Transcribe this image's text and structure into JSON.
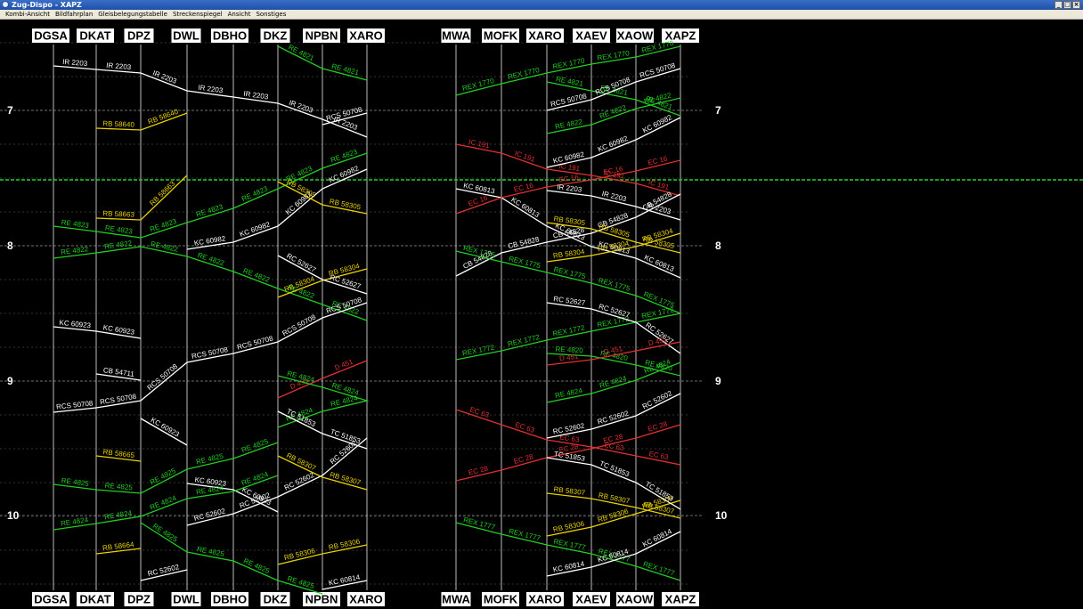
{
  "window": {
    "title": "Zug-Dispo - XAPZ",
    "minimize": "_",
    "maximize": "□",
    "close": "×"
  },
  "menu": [
    "Kombi-Ansicht",
    "Bildfahrplan",
    "Gleisbelegungstabelle",
    "Streckenspiegel",
    "Ansicht",
    "Sonstiges"
  ],
  "stations_left": [
    "DGSA",
    "DKAT",
    "DPZ",
    "DWL",
    "DBHO",
    "DKZ",
    "NPBN",
    "XARO"
  ],
  "stations_right": [
    "MWA",
    "MOFK",
    "XARO",
    "XAEV",
    "XAOW",
    "XAPZ"
  ],
  "hours": [
    "7",
    "8",
    "9",
    "10"
  ],
  "colors": {
    "green": "#22cc22",
    "yellow": "#e8d000",
    "white": "#ffffff",
    "red": "#e03030",
    "now_line": "#2ccb2c",
    "grid": "#666666"
  },
  "trains": [
    {
      "label": "IR 2203",
      "color": "white",
      "path": [
        [
          0,
          52
        ],
        [
          1,
          56
        ],
        [
          2,
          60
        ],
        [
          3,
          80
        ],
        [
          4,
          87
        ],
        [
          5,
          94
        ],
        [
          6,
          112
        ],
        [
          7,
          132
        ]
      ]
    },
    {
      "label": "RB 58640",
      "color": "yellow",
      "path": [
        [
          1,
          122
        ],
        [
          2,
          124
        ],
        [
          3,
          105
        ]
      ]
    },
    {
      "label": "RE 4821",
      "color": "green",
      "path": [
        [
          5,
          30
        ],
        [
          6,
          55
        ],
        [
          7,
          68
        ]
      ]
    },
    {
      "label": "RCS 50708",
      "color": "white",
      "path": [
        [
          6,
          118
        ],
        [
          7,
          105
        ]
      ]
    },
    {
      "label": "RB 58663",
      "color": "yellow",
      "path": [
        [
          1,
          223
        ],
        [
          2,
          225
        ],
        [
          3,
          175
        ]
      ]
    },
    {
      "label": "RE 4823",
      "color": "green",
      "path": [
        [
          0,
          232
        ],
        [
          1,
          238
        ],
        [
          2,
          245
        ],
        [
          3,
          228
        ],
        [
          4,
          212
        ],
        [
          5,
          190
        ],
        [
          6,
          167
        ],
        [
          7,
          150
        ]
      ]
    },
    {
      "label": "RE 4822",
      "color": "green",
      "path": [
        [
          0,
          268
        ],
        [
          1,
          262
        ],
        [
          2,
          255
        ],
        [
          3,
          266
        ],
        [
          4,
          283
        ],
        [
          5,
          302
        ],
        [
          6,
          320
        ],
        [
          7,
          338
        ]
      ]
    },
    {
      "label": "KC 60982",
      "color": "white",
      "path": [
        [
          3,
          258
        ],
        [
          4,
          250
        ],
        [
          5,
          232
        ],
        [
          6,
          190
        ],
        [
          7,
          168
        ]
      ]
    },
    {
      "label": "RB 58305",
      "color": "yellow",
      "path": [
        [
          5,
          182
        ],
        [
          6,
          208
        ],
        [
          7,
          218
        ]
      ]
    },
    {
      "label": "RB 58304",
      "color": "yellow",
      "path": [
        [
          5,
          312
        ],
        [
          6,
          293
        ],
        [
          7,
          280
        ]
      ]
    },
    {
      "label": "RC 52627",
      "color": "white",
      "path": [
        [
          5,
          265
        ],
        [
          6,
          292
        ],
        [
          7,
          308
        ]
      ]
    },
    {
      "label": "RCS 50708",
      "color": "white",
      "path": [
        [
          0,
          441
        ],
        [
          1,
          436
        ],
        [
          2,
          428
        ],
        [
          3,
          385
        ],
        [
          4,
          375
        ],
        [
          5,
          362
        ],
        [
          6,
          335
        ],
        [
          7,
          318
        ]
      ]
    },
    {
      "label": "KC 60923",
      "color": "white",
      "path": [
        [
          0,
          345
        ],
        [
          1,
          350
        ],
        [
          2,
          358
        ]
      ]
    },
    {
      "label": "CB 54711",
      "color": "white",
      "path": [
        [
          1,
          398
        ],
        [
          2,
          405
        ]
      ]
    },
    {
      "label": "D 451",
      "color": "red",
      "path": [
        [
          5,
          425
        ],
        [
          6,
          403
        ],
        [
          7,
          383
        ]
      ]
    },
    {
      "label": "RE 4824",
      "color": "green",
      "path": [
        [
          5,
          458
        ],
        [
          6,
          440
        ],
        [
          7,
          428
        ],
        [
          6,
          413
        ],
        [
          5,
          400
        ]
      ]
    },
    {
      "label": "TC 51853",
      "color": "white",
      "path": [
        [
          5,
          440
        ],
        [
          6,
          465
        ],
        [
          7,
          482
        ]
      ]
    },
    {
      "label": "RB 58665",
      "color": "yellow",
      "path": [
        [
          1,
          490
        ],
        [
          2,
          496
        ]
      ]
    },
    {
      "label": "RE 4825",
      "color": "green",
      "path": [
        [
          0,
          522
        ],
        [
          1,
          528
        ],
        [
          2,
          532
        ],
        [
          3,
          505
        ],
        [
          4,
          493
        ],
        [
          5,
          475
        ]
      ]
    },
    {
      "label": "KC 60923",
      "color": "white",
      "path": [
        [
          2,
          448
        ],
        [
          3,
          478
        ]
      ]
    },
    {
      "label": "KC 60923",
      "color": "white",
      "path": [
        [
          3,
          521
        ],
        [
          4,
          528
        ],
        [
          5,
          553
        ]
      ]
    },
    {
      "label": "RC 52602",
      "color": "white",
      "path": [
        [
          3,
          568
        ],
        [
          4,
          555
        ],
        [
          5,
          536
        ],
        [
          6,
          512
        ],
        [
          7,
          470
        ]
      ]
    },
    {
      "label": "RB 58307",
      "color": "yellow",
      "path": [
        [
          5,
          490
        ],
        [
          6,
          514
        ],
        [
          7,
          528
        ]
      ]
    },
    {
      "label": "RE 4824",
      "color": "green",
      "path": [
        [
          0,
          573
        ],
        [
          1,
          566
        ],
        [
          2,
          558
        ],
        [
          3,
          538
        ],
        [
          4,
          530
        ],
        [
          5,
          512
        ]
      ]
    },
    {
      "label": "RB 58664",
      "color": "yellow",
      "path": [
        [
          1,
          600
        ],
        [
          2,
          594
        ]
      ]
    },
    {
      "label": "RE 4825",
      "color": "green",
      "path": [
        [
          2,
          565
        ],
        [
          3,
          598
        ],
        [
          4,
          608
        ],
        [
          5,
          630
        ],
        [
          6,
          645
        ]
      ]
    },
    {
      "label": "RB 58306",
      "color": "yellow",
      "path": [
        [
          5,
          612
        ],
        [
          6,
          600
        ],
        [
          7,
          590
        ]
      ]
    },
    {
      "label": "KC 60814",
      "color": "white",
      "path": [
        [
          6,
          640
        ],
        [
          7,
          630
        ]
      ]
    },
    {
      "label": "RC 52602",
      "color": "white",
      "path": [
        [
          2,
          630
        ],
        [
          3,
          618
        ]
      ]
    },
    {
      "label": "REX 1770",
      "color": "green",
      "path": [
        [
          8,
          85
        ],
        [
          9,
          72
        ],
        [
          10,
          60
        ],
        [
          11,
          50
        ],
        [
          12,
          42
        ],
        [
          13,
          30
        ]
      ]
    },
    {
      "label": "IC 191",
      "color": "red",
      "path": [
        [
          8,
          140
        ],
        [
          9,
          150
        ],
        [
          10,
          168
        ],
        [
          11,
          175
        ],
        [
          12,
          184
        ],
        [
          13,
          198
        ]
      ]
    },
    {
      "label": "KC 60813",
      "color": "white",
      "path": [
        [
          8,
          190
        ],
        [
          9,
          200
        ],
        [
          10,
          232
        ],
        [
          11,
          255
        ],
        [
          12,
          268
        ],
        [
          13,
          290
        ]
      ]
    },
    {
      "label": "EC 16",
      "color": "red",
      "path": [
        [
          8,
          218
        ],
        [
          9,
          200
        ],
        [
          10,
          188
        ],
        [
          11,
          180
        ],
        [
          12,
          170
        ],
        [
          13,
          158
        ]
      ]
    },
    {
      "label": "CB 54828",
      "color": "white",
      "path": [
        [
          8,
          288
        ],
        [
          9,
          262
        ],
        [
          10,
          250
        ],
        [
          11,
          240
        ],
        [
          12,
          222
        ],
        [
          13,
          196
        ]
      ]
    },
    {
      "label": "REX 1775",
      "color": "green",
      "path": [
        [
          8,
          260
        ],
        [
          9,
          272
        ],
        [
          10,
          284
        ],
        [
          11,
          296
        ],
        [
          12,
          310
        ],
        [
          13,
          330
        ]
      ]
    },
    {
      "label": "REX 1772",
      "color": "green",
      "path": [
        [
          8,
          382
        ],
        [
          9,
          372
        ],
        [
          10,
          360
        ],
        [
          11,
          350
        ],
        [
          12,
          340
        ],
        [
          13,
          330
        ]
      ]
    },
    {
      "label": "EC 63",
      "color": "red",
      "path": [
        [
          8,
          438
        ],
        [
          9,
          455
        ],
        [
          10,
          472
        ],
        [
          11,
          480
        ],
        [
          12,
          490
        ],
        [
          13,
          500
        ]
      ]
    },
    {
      "label": "EC 28",
      "color": "red",
      "path": [
        [
          8,
          518
        ],
        [
          9,
          506
        ],
        [
          10,
          492
        ],
        [
          11,
          482
        ],
        [
          12,
          470
        ],
        [
          13,
          455
        ]
      ]
    },
    {
      "label": "REX 1777",
      "color": "green",
      "path": [
        [
          8,
          565
        ],
        [
          9,
          578
        ],
        [
          10,
          590
        ],
        [
          11,
          600
        ],
        [
          12,
          614
        ],
        [
          13,
          630
        ]
      ]
    },
    {
      "label": "RC 52627",
      "color": "white",
      "path": [
        [
          10,
          318
        ],
        [
          11,
          325
        ],
        [
          12,
          340
        ],
        [
          13,
          375
        ]
      ]
    },
    {
      "label": "RC 52602",
      "color": "white",
      "path": [
        [
          10,
          470
        ],
        [
          11,
          460
        ],
        [
          12,
          445
        ],
        [
          13,
          420
        ]
      ]
    },
    {
      "label": "RB 58305",
      "color": "yellow",
      "path": [
        [
          10,
          228
        ],
        [
          11,
          235
        ],
        [
          12,
          250
        ],
        [
          13,
          262
        ]
      ]
    },
    {
      "label": "RB 58304",
      "color": "yellow",
      "path": [
        [
          10,
          272
        ],
        [
          11,
          265
        ],
        [
          12,
          255
        ],
        [
          13,
          240
        ]
      ]
    },
    {
      "label": "RE 4822",
      "color": "green",
      "path": [
        [
          10,
          128
        ],
        [
          11,
          118
        ],
        [
          12,
          100
        ],
        [
          13,
          88
        ]
      ]
    },
    {
      "label": "RE 4821",
      "color": "green",
      "path": [
        [
          10,
          70
        ],
        [
          11,
          80
        ],
        [
          12,
          90
        ],
        [
          13,
          108
        ]
      ]
    },
    {
      "label": "RCS 50708",
      "color": "white",
      "path": [
        [
          10,
          102
        ],
        [
          11,
          90
        ],
        [
          12,
          70
        ],
        [
          13,
          55
        ]
      ]
    },
    {
      "label": "KC 60982",
      "color": "white",
      "path": [
        [
          10,
          166
        ],
        [
          11,
          155
        ],
        [
          12,
          135
        ],
        [
          13,
          110
        ]
      ]
    },
    {
      "label": "IR 2203",
      "color": "white",
      "path": [
        [
          10,
          192
        ],
        [
          11,
          198
        ],
        [
          12,
          210
        ],
        [
          13,
          225
        ]
      ]
    },
    {
      "label": "RE 4820",
      "color": "green",
      "path": [
        [
          10,
          375
        ],
        [
          11,
          378
        ],
        [
          12,
          388
        ],
        [
          13,
          400
        ]
      ]
    },
    {
      "label": "D 451",
      "color": "red",
      "path": [
        [
          10,
          388
        ],
        [
          11,
          382
        ],
        [
          12,
          372
        ],
        [
          13,
          362
        ]
      ]
    },
    {
      "label": "RE 4824",
      "color": "green",
      "path": [
        [
          10,
          430
        ],
        [
          11,
          420
        ],
        [
          12,
          405
        ],
        [
          13,
          385
        ]
      ]
    },
    {
      "label": "RB 58307",
      "color": "yellow",
      "path": [
        [
          10,
          532
        ],
        [
          11,
          538
        ],
        [
          12,
          548
        ],
        [
          13,
          560
        ]
      ]
    },
    {
      "label": "RB 58306",
      "color": "yellow",
      "path": [
        [
          10,
          580
        ],
        [
          11,
          570
        ],
        [
          12,
          555
        ],
        [
          13,
          540
        ]
      ]
    },
    {
      "label": "KC 60814",
      "color": "white",
      "path": [
        [
          10,
          625
        ],
        [
          11,
          615
        ],
        [
          12,
          600
        ],
        [
          13,
          575
        ]
      ]
    },
    {
      "label": "TC 51853",
      "color": "white",
      "path": [
        [
          10,
          492
        ],
        [
          11,
          500
        ],
        [
          12,
          520
        ],
        [
          13,
          550
        ]
      ]
    }
  ]
}
